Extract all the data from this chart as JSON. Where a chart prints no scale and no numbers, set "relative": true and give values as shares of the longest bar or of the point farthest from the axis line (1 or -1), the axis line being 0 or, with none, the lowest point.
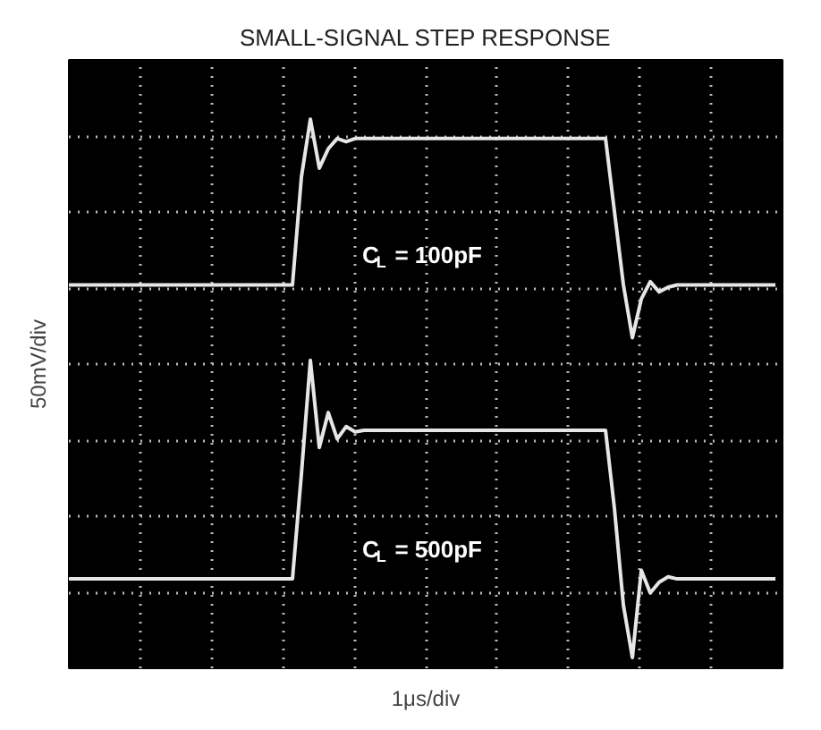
{
  "chart_data": {
    "type": "line",
    "title": "SMALL-SIGNAL STEP RESPONSE",
    "xlabel": "1μs/div",
    "ylabel": "50mV/div",
    "relative": true,
    "grid": true,
    "marker": "none",
    "line_style": "solid",
    "categories": [
      null,
      null,
      null,
      null,
      null,
      null,
      null,
      null,
      null,
      null,
      null,
      null,
      null,
      null,
      null,
      null,
      null,
      null,
      null,
      null,
      null,
      null,
      null,
      null,
      null,
      null,
      null,
      null,
      null,
      null,
      null,
      null,
      null,
      null,
      null,
      null,
      null,
      null,
      null,
      null,
      null,
      null,
      null,
      null,
      null,
      null,
      null,
      null,
      null,
      null,
      null,
      null,
      null,
      null,
      null,
      null,
      null,
      null,
      null,
      null,
      null,
      null,
      null,
      null,
      null,
      null,
      null,
      null,
      null,
      null,
      null,
      null,
      null,
      null,
      null,
      null,
      null,
      null,
      null,
      null
    ],
    "series": [
      {
        "name": "C$_{L}$ = 100pF",
        "color": "#e6e6e6",
        "values": [
          0.692,
          0.692,
          0.692,
          0.692,
          0.692,
          0.692,
          0.692,
          0.692,
          0.692,
          0.692,
          0.692,
          0.692,
          0.692,
          0.692,
          0.692,
          0.692,
          0.692,
          0.692,
          0.692,
          0.692,
          0.692,
          0.692,
          0.692,
          0.692,
          0.692,
          0.692,
          0.893,
          1.0,
          0.909,
          0.945,
          0.964,
          0.958,
          0.964,
          0.964,
          0.964,
          0.964,
          0.964,
          0.964,
          0.964,
          0.964,
          0.964,
          0.964,
          0.964,
          0.964,
          0.964,
          0.964,
          0.964,
          0.964,
          0.964,
          0.964,
          0.964,
          0.964,
          0.964,
          0.964,
          0.964,
          0.964,
          0.964,
          0.964,
          0.964,
          0.964,
          0.964,
          0.828,
          0.692,
          0.594,
          0.666,
          0.698,
          0.679,
          0.688,
          0.692,
          0.692,
          0.692,
          0.692,
          0.692,
          0.692,
          0.692,
          0.692,
          0.692,
          0.692,
          0.692,
          0.692
        ]
      },
      {
        "name": "C$_{L}$ = 500pF",
        "color": "#e6e6e6",
        "values": [
          0.146,
          0.146,
          0.146,
          0.146,
          0.146,
          0.146,
          0.146,
          0.146,
          0.146,
          0.146,
          0.146,
          0.146,
          0.146,
          0.146,
          0.146,
          0.146,
          0.146,
          0.146,
          0.146,
          0.146,
          0.146,
          0.146,
          0.146,
          0.146,
          0.146,
          0.146,
          0.341,
          0.552,
          0.39,
          0.455,
          0.406,
          0.429,
          0.419,
          0.422,
          0.422,
          0.422,
          0.422,
          0.422,
          0.422,
          0.422,
          0.422,
          0.422,
          0.422,
          0.422,
          0.422,
          0.422,
          0.422,
          0.422,
          0.422,
          0.422,
          0.422,
          0.422,
          0.422,
          0.422,
          0.422,
          0.422,
          0.422,
          0.422,
          0.422,
          0.422,
          0.422,
          0.276,
          0.097,
          0.0,
          0.162,
          0.12,
          0.14,
          0.15,
          0.146,
          0.146,
          0.146,
          0.146,
          0.146,
          0.146,
          0.146,
          0.146,
          0.146,
          0.146,
          0.146,
          0.146
        ]
      }
    ]
  }
}
